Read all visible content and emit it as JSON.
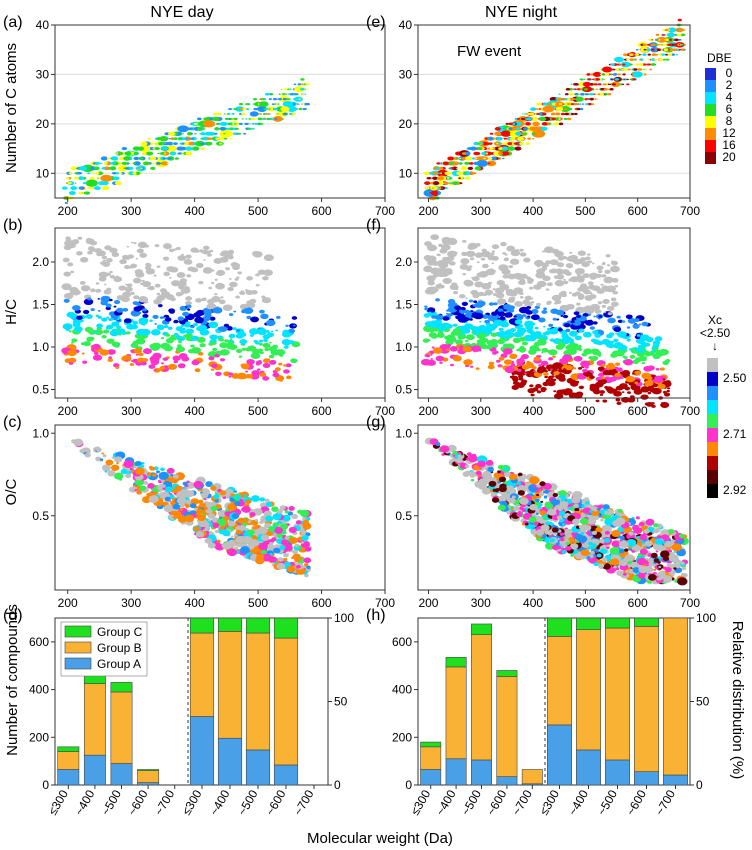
{
  "figure": {
    "column_titles": [
      "NYE day",
      "NYE night"
    ],
    "annotation": "FW event",
    "xlabel": "Molecular weight (Da)"
  },
  "colors": {
    "dbe": [
      "#1f2fd6",
      "#1e90ff",
      "#00e5ff",
      "#22dd22",
      "#ffff00",
      "#ff8c00",
      "#ff0000",
      "#8b0000"
    ],
    "xc": [
      "#c0c0c0",
      "#0000cc",
      "#1e90ff",
      "#00e5ff",
      "#33ee55",
      "#ff33cc",
      "#ff8800",
      "#b00000",
      "#5a0000",
      "#000000"
    ],
    "group_a": "#4aa0e6",
    "group_b": "#f9b234",
    "group_c": "#1ee01e"
  },
  "legends": {
    "dbe_title": "DBE",
    "dbe_ticks": [
      "0",
      "2",
      "4",
      "6",
      "8",
      "12",
      "16",
      "20"
    ],
    "xc_title": "Xc",
    "xc_top_label": "<2.50",
    "xc_arrow": "↓",
    "xc_ticks": [
      "2.50",
      "2.71",
      "2.92"
    ]
  },
  "chart_data": [
    {
      "id": "a",
      "label": "(a)",
      "type": "scatter",
      "title": "NYE day",
      "xlabel": "",
      "ylabel": "Number of C atoms",
      "xlim": [
        180,
        700
      ],
      "ylim": [
        5,
        40
      ],
      "xticks": [
        200,
        300,
        400,
        500,
        600,
        700
      ],
      "yticks": [
        10,
        20,
        30,
        40
      ],
      "xtick_labels": [
        "200",
        "300",
        "400",
        "500",
        "600",
        "700"
      ],
      "ytick_labels": [
        "10",
        "20",
        "30",
        "40"
      ],
      "grid": "horizontal",
      "color_by": "DBE",
      "description_x_range": [
        195,
        580
      ],
      "y_range": [
        7,
        27
      ]
    },
    {
      "id": "e",
      "label": "(e)",
      "type": "scatter",
      "title": "NYE night",
      "xlabel": "",
      "ylabel": "",
      "xlim": [
        180,
        700
      ],
      "ylim": [
        5,
        40
      ],
      "xticks": [
        200,
        300,
        400,
        500,
        600,
        700
      ],
      "yticks": [
        10,
        20,
        30,
        40
      ],
      "xtick_labels": [
        "200",
        "300",
        "400",
        "500",
        "600",
        "700"
      ],
      "ytick_labels": [
        "10",
        "20",
        "30",
        "40"
      ],
      "grid": "horizontal",
      "color_by": "DBE",
      "description_x_range": [
        200,
        690
      ],
      "y_range": [
        6,
        38
      ]
    },
    {
      "id": "b",
      "label": "(b)",
      "type": "scatter",
      "xlabel": "",
      "ylabel": "H/C",
      "xlim": [
        180,
        700
      ],
      "ylim": [
        0.4,
        2.4
      ],
      "xticks": [
        200,
        300,
        400,
        500,
        600,
        700
      ],
      "yticks": [
        0.5,
        1.0,
        1.5,
        2.0
      ],
      "xtick_labels": [
        "200",
        "300",
        "400",
        "500",
        "600",
        "700"
      ],
      "ytick_labels": [
        "0.5",
        "1.0",
        "1.5",
        "2.0"
      ],
      "grid": "none",
      "color_by": "Xc"
    },
    {
      "id": "f",
      "label": "(f)",
      "type": "scatter",
      "xlabel": "",
      "ylabel": "",
      "xlim": [
        180,
        700
      ],
      "ylim": [
        0.4,
        2.4
      ],
      "xticks": [
        200,
        300,
        400,
        500,
        600,
        700
      ],
      "yticks": [
        0.5,
        1.0,
        1.5,
        2.0
      ],
      "xtick_labels": [
        "200",
        "300",
        "400",
        "500",
        "600",
        "700"
      ],
      "ytick_labels": [
        "0.5",
        "1.0",
        "1.5",
        "2.0"
      ],
      "grid": "none",
      "color_by": "Xc"
    },
    {
      "id": "c",
      "label": "(c)",
      "type": "scatter",
      "xlabel": "",
      "ylabel": "O/C",
      "xlim": [
        180,
        700
      ],
      "ylim": [
        0.05,
        1.05
      ],
      "xticks": [
        200,
        300,
        400,
        500,
        600,
        700
      ],
      "yticks": [
        0.5,
        1.0
      ],
      "xtick_labels": [
        "200",
        "300",
        "400",
        "500",
        "600",
        "700"
      ],
      "ytick_labels": [
        "0.5",
        "1.0"
      ],
      "grid": "none",
      "color_by": "Xc"
    },
    {
      "id": "g",
      "label": "(g)",
      "type": "scatter",
      "xlabel": "",
      "ylabel": "",
      "xlim": [
        180,
        700
      ],
      "ylim": [
        0.05,
        1.05
      ],
      "xticks": [
        200,
        300,
        400,
        500,
        600,
        700
      ],
      "yticks": [
        0.5,
        1.0
      ],
      "xtick_labels": [
        "200",
        "300",
        "400",
        "500",
        "600",
        "700"
      ],
      "ytick_labels": [
        "0.5",
        "1.0"
      ],
      "grid": "none",
      "color_by": "Xc"
    },
    {
      "id": "d",
      "label": "(d)",
      "type": "bar",
      "stacked": true,
      "ylabel_left": "Number of compounds",
      "ylabel_right": "",
      "categories": [
        "≤300",
        "~400",
        "~500",
        "~600",
        "~700"
      ],
      "ylim_left": [
        0,
        700
      ],
      "yticks_left": [
        0,
        200,
        400,
        600
      ],
      "yticks_left_labels": [
        "0",
        "200",
        "400",
        "600"
      ],
      "ylim_right": [
        0,
        100
      ],
      "yticks_right": [
        0,
        50,
        100
      ],
      "yticks_right_labels": [
        "0",
        "50",
        "100"
      ],
      "legend": [
        "Group C",
        "Group B",
        "Group A"
      ],
      "legend_position": "top-left",
      "counts": {
        "group_a": [
          65,
          125,
          90,
          10,
          0
        ],
        "group_b": [
          75,
          300,
          300,
          50,
          0
        ],
        "group_c": [
          20,
          40,
          40,
          5,
          0
        ]
      },
      "relative": {
        "group_a": [
          41,
          28,
          21,
          12
        ],
        "group_b": [
          50,
          64,
          70,
          76
        ],
        "group_c": [
          9,
          8,
          9,
          12
        ]
      }
    },
    {
      "id": "h",
      "label": "(h)",
      "type": "bar",
      "stacked": true,
      "ylabel_left": "",
      "ylabel_right": "Relative distribution (%)",
      "categories": [
        "≤300",
        "~400",
        "~500",
        "~600",
        "~700"
      ],
      "ylim_left": [
        0,
        700
      ],
      "yticks_left": [
        0,
        200,
        400,
        600
      ],
      "yticks_left_labels": [
        "0",
        "200",
        "400",
        "600"
      ],
      "ylim_right": [
        0,
        100
      ],
      "yticks_right": [
        0,
        50,
        100
      ],
      "yticks_right_labels": [
        "0",
        "50",
        "100"
      ],
      "counts": {
        "group_a": [
          65,
          110,
          105,
          35,
          5
        ],
        "group_b": [
          95,
          385,
          525,
          420,
          60
        ],
        "group_c": [
          20,
          40,
          45,
          25,
          0
        ]
      },
      "relative": {
        "group_a": [
          36,
          21,
          15,
          8,
          6
        ],
        "group_b": [
          53,
          72,
          79,
          87,
          94
        ],
        "group_c": [
          11,
          7,
          6,
          5,
          0
        ]
      }
    }
  ]
}
